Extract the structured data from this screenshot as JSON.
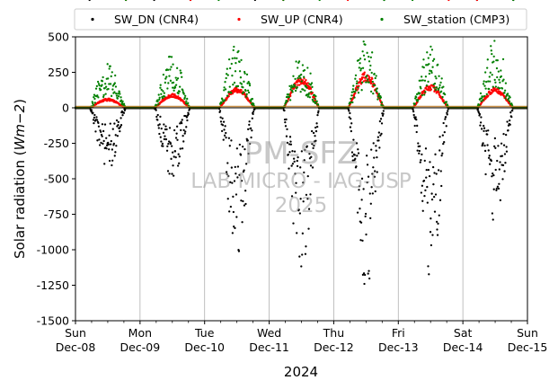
{
  "chart_data": {
    "type": "scatter",
    "ylabel_main": "Solar radiation (",
    "ylabel_unit": "Wm−2",
    "ylabel_close": ")",
    "xlabel": "2024",
    "ylim": [
      -1500,
      500
    ],
    "yticks": [
      -1500,
      -1250,
      -1000,
      -750,
      -500,
      -250,
      0,
      250,
      500
    ],
    "xlim_days": [
      0,
      7
    ],
    "xticks": [
      {
        "day": 0,
        "line1": "Sun",
        "line2": "Dec-08"
      },
      {
        "day": 1,
        "line1": "Mon",
        "line2": "Dec-09"
      },
      {
        "day": 2,
        "line1": "Tue",
        "line2": "Dec-10"
      },
      {
        "day": 3,
        "line1": "Wed",
        "line2": "Dec-11"
      },
      {
        "day": 4,
        "line1": "Thu",
        "line2": "Dec-12"
      },
      {
        "day": 5,
        "line1": "Fri",
        "line2": "Dec-13"
      },
      {
        "day": 6,
        "line1": "Sat",
        "line2": "Dec-14"
      },
      {
        "day": 7,
        "line1": "Sun",
        "line2": "Dec-15"
      }
    ],
    "grid": "vertical",
    "legend_placement": "top",
    "series": [
      {
        "name": "SW_DN (CNR4)",
        "color": "#000000",
        "daily_peak": [
          -440,
          -550,
          -1040,
          -1220,
          -1290,
          -1190,
          -810
        ]
      },
      {
        "name": "SW_UP (CNR4)",
        "color": "#ff0000",
        "daily_peak": [
          60,
          90,
          130,
          200,
          230,
          150,
          130
        ]
      },
      {
        "name": "SW_station (CMP3)",
        "color": "#008000",
        "daily_peak": [
          320,
          390,
          480,
          390,
          490,
          440,
          490
        ]
      }
    ],
    "day_window": {
      "start_fraction": 0.22,
      "end_fraction": 0.78
    }
  },
  "watermark": {
    "line1": "PM-SFZ",
    "line2": "LAB MICRO - IAG-USP",
    "line3": "2025"
  }
}
